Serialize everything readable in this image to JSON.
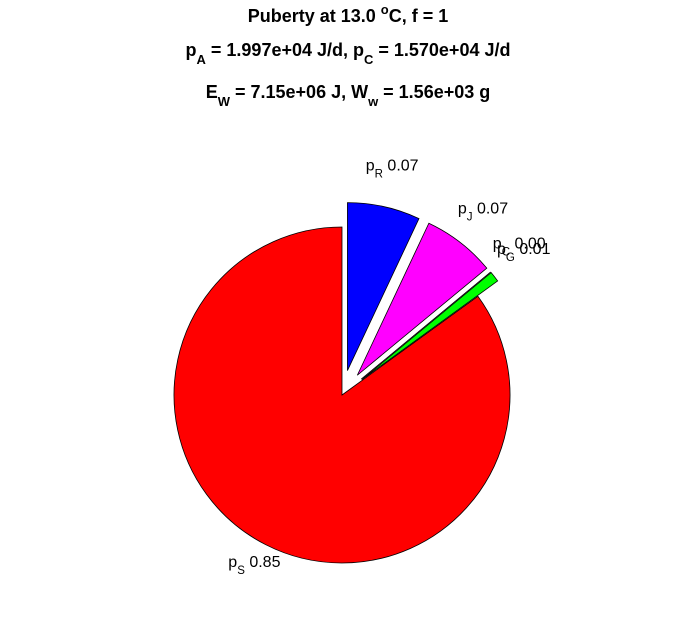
{
  "chart_data": {
    "type": "pie",
    "title": [
      [
        "Puberty at 13.0 ",
        {
          "sup": "o"
        },
        "C, f = 1"
      ],
      [
        "p",
        {
          "sub": "A"
        },
        " = 1.997e+04 J/d,  p",
        {
          "sub": "C"
        },
        " = 1.570e+04 J/d"
      ],
      [
        "E",
        {
          "sub": "W"
        },
        " = 7.15e+06 J, W",
        {
          "sub": "w"
        },
        " = 1.56e+03 g"
      ]
    ],
    "categories": [
      [
        "p",
        {
          "sub": "R"
        }
      ],
      [
        "p",
        {
          "sub": "J"
        }
      ],
      [
        "p",
        {
          "sub": "C"
        }
      ],
      [
        "p",
        {
          "sub": "G"
        }
      ],
      [
        "p",
        {
          "sub": "S"
        }
      ]
    ],
    "values": [
      0.07,
      0.07,
      0.0,
      0.01,
      0.85
    ],
    "value_labels": [
      "0.07",
      "0.07",
      "0.00",
      "0.01",
      "0.85"
    ],
    "colors": [
      "#0000ff",
      "#ff00ff",
      "#808080",
      "#00ff00",
      "#ff0000"
    ],
    "explode": [
      true,
      true,
      true,
      true,
      false
    ]
  }
}
